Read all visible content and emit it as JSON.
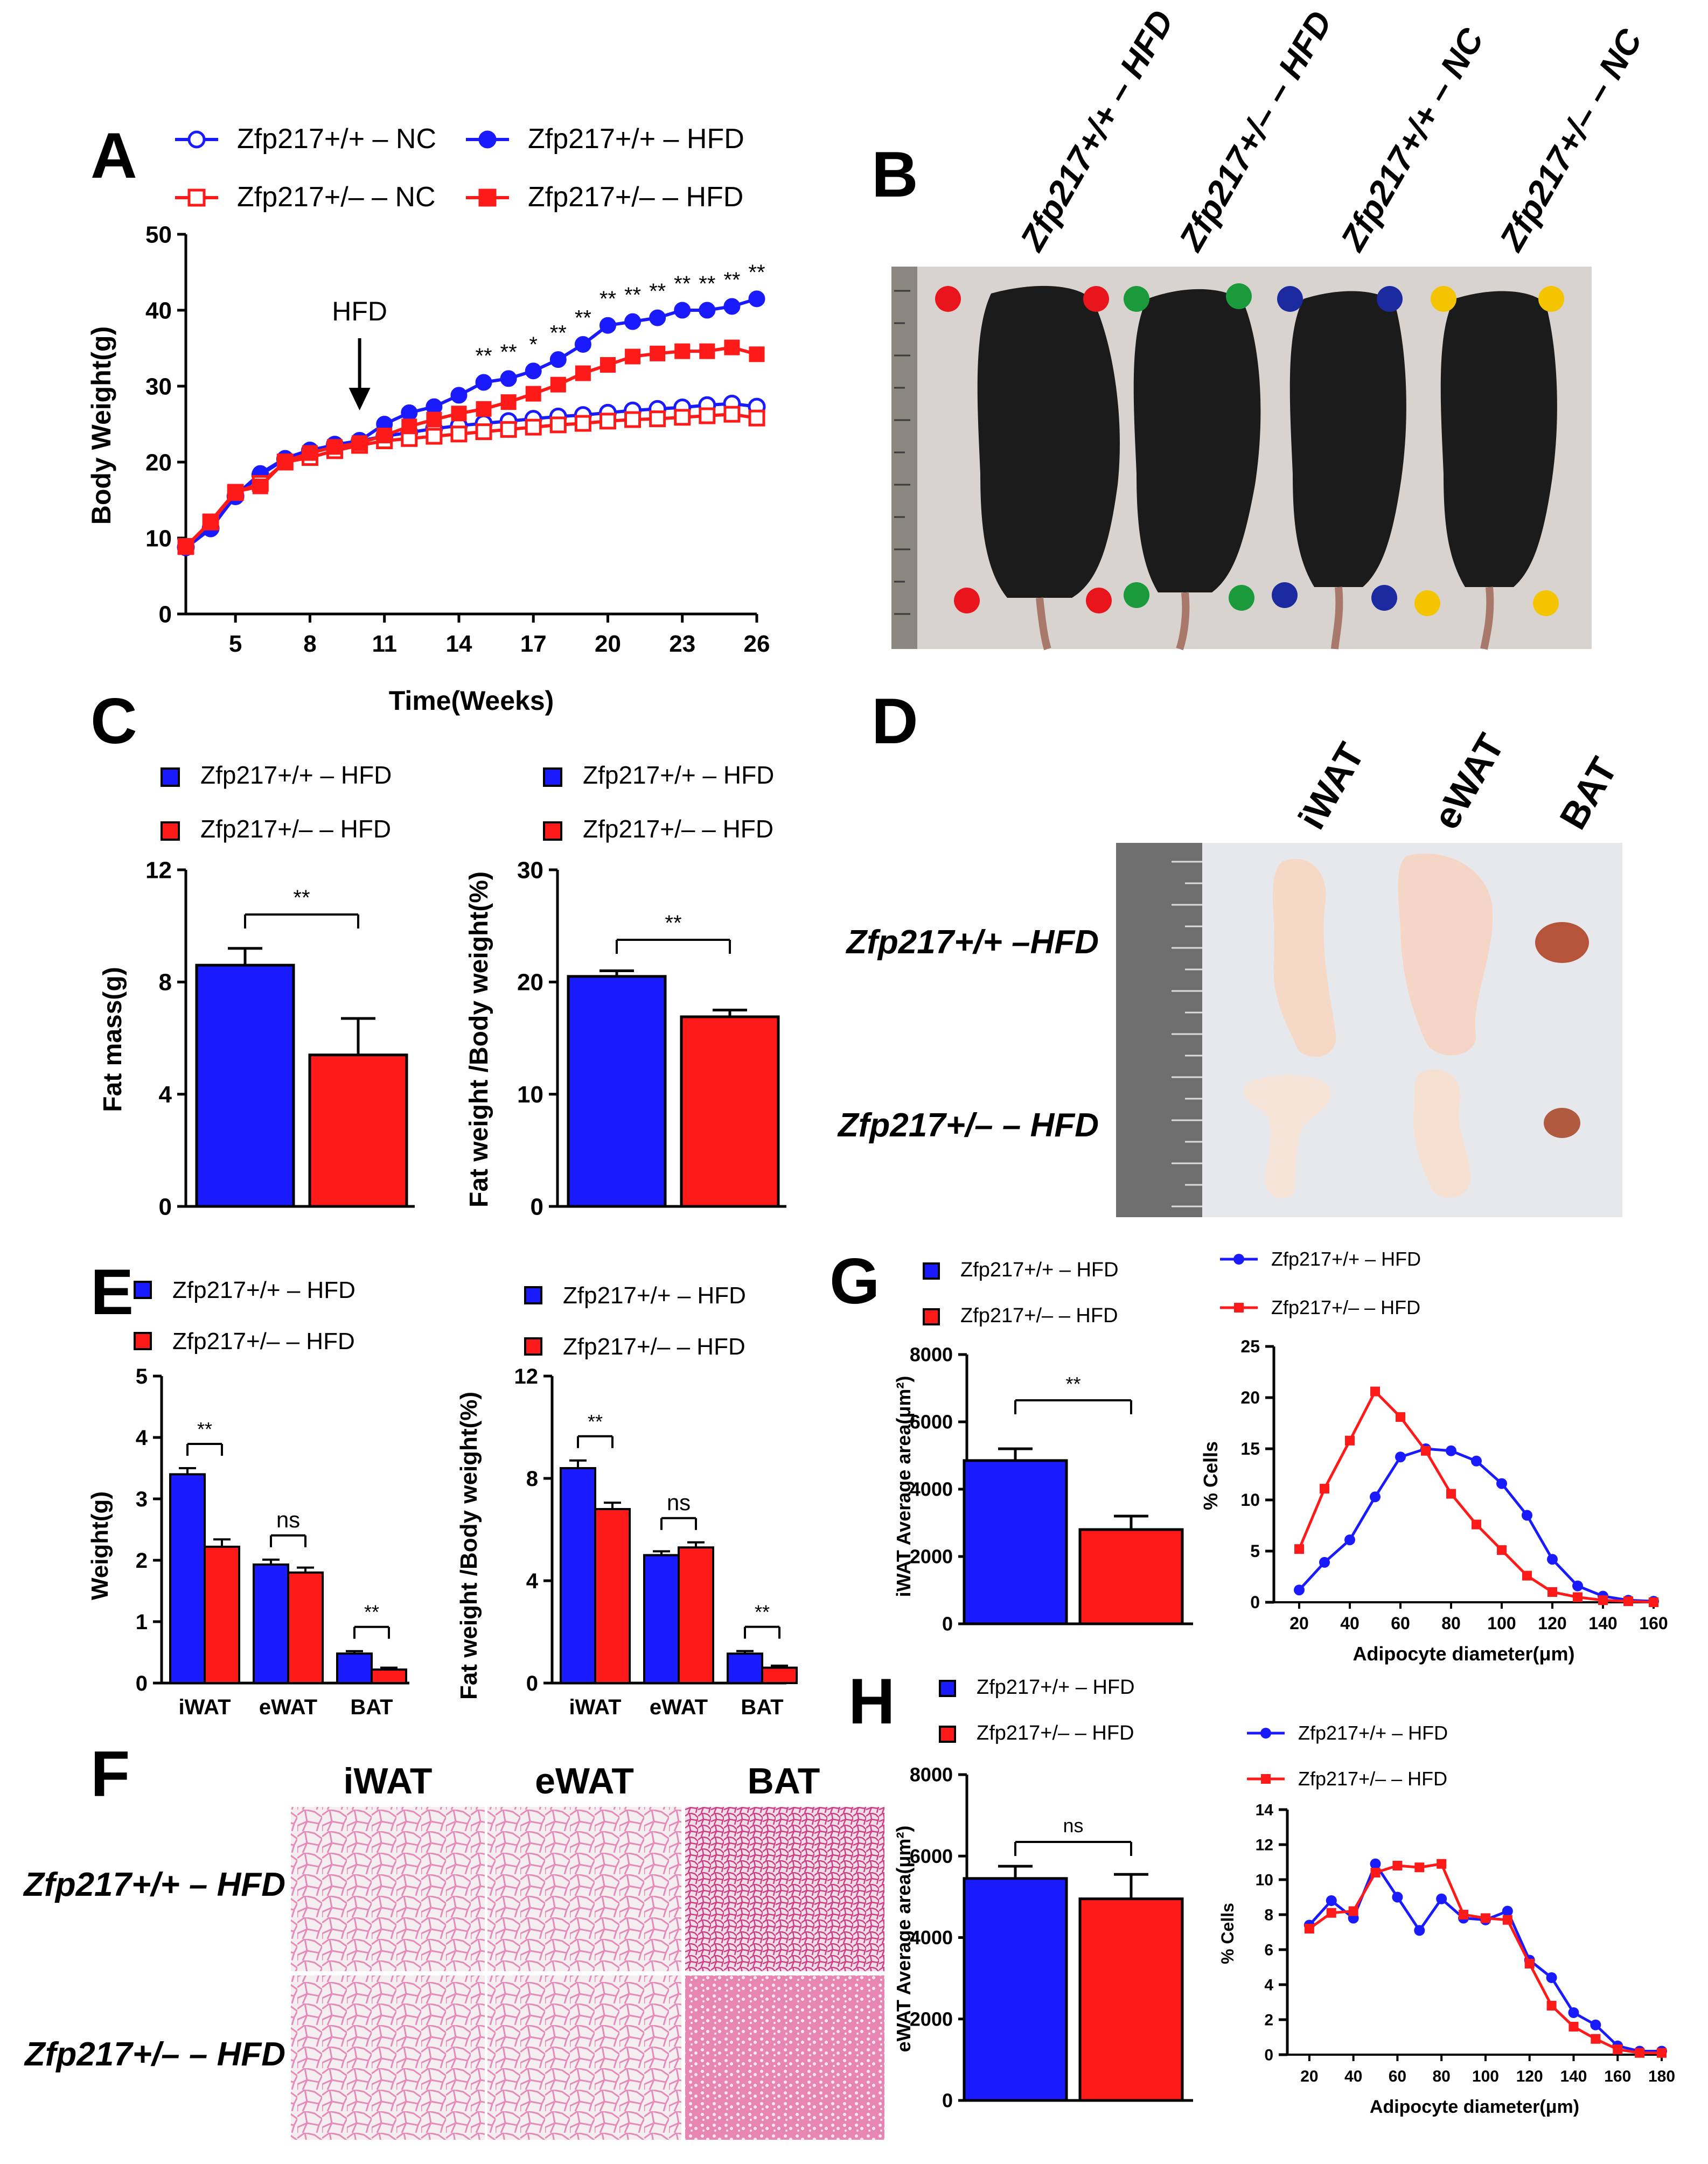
{
  "figure": {
    "panel_letters": [
      "A",
      "B",
      "C",
      "D",
      "E",
      "F",
      "G",
      "H"
    ],
    "group_legend": {
      "wt_hfd": "Zfp217+/+ – HFD",
      "het_hfd": "Zfp217+/– – HFD",
      "wt_nc": "Zfp217+/+ – NC",
      "het_nc": "Zfp217+/– – NC"
    },
    "colors": {
      "blue": "#1a1aff",
      "red": "#ff1a1a",
      "ruler": "#6f6f6f"
    }
  },
  "panel_b": {
    "column_labels": [
      "Zfp217+/+ – HFD",
      "Zfp217+/– – HFD",
      "Zfp217+/+ – NC",
      "Zfp217+/– – NC"
    ],
    "tag_colors": [
      "#e8151c",
      "#1a9a3a",
      "#1c2aa0",
      "#f5c400"
    ]
  },
  "panel_d": {
    "column_labels": [
      "iWAT",
      "eWAT",
      "BAT"
    ],
    "row_labels": [
      "Zfp217+/+ –HFD",
      "Zfp217+/– – HFD"
    ]
  },
  "panel_f": {
    "column_labels": [
      "iWAT",
      "eWAT",
      "BAT"
    ],
    "row_labels": [
      "Zfp217+/+ – HFD",
      "Zfp217+/– – HFD"
    ]
  },
  "chart_data": [
    {
      "id": "A",
      "type": "line",
      "xlabel": "Time(Weeks)",
      "ylabel": "Body Weight(g)",
      "xlim": [
        3,
        26
      ],
      "ylim": [
        0,
        50
      ],
      "xticks": [
        5,
        8,
        11,
        14,
        17,
        20,
        23,
        26
      ],
      "yticks": [
        0,
        10,
        20,
        30,
        40,
        50
      ],
      "annotation": {
        "text": "HFD",
        "x": 10
      },
      "x": [
        3,
        4,
        5,
        6,
        7,
        8,
        9,
        10,
        11,
        12,
        13,
        14,
        15,
        16,
        17,
        18,
        19,
        20,
        21,
        22,
        23,
        24,
        25,
        26
      ],
      "series": [
        {
          "name": "Zfp217+/+ – NC",
          "color": "#1a1aff",
          "marker": "open-circle",
          "values": [
            8.8,
            11.3,
            15.5,
            18.3,
            20.4,
            21.5,
            22.3,
            22.8,
            23.4,
            23.9,
            24.4,
            24.8,
            25.1,
            25.4,
            25.7,
            26.0,
            26.2,
            26.5,
            26.8,
            27.0,
            27.2,
            27.5,
            27.7,
            27.3
          ]
        },
        {
          "name": "Zfp217+/+ – HFD",
          "color": "#1a1aff",
          "marker": "filled-circle",
          "values": [
            8.7,
            11.2,
            15.6,
            18.5,
            20.5,
            21.6,
            22.2,
            22.8,
            25.0,
            26.5,
            27.3,
            28.8,
            30.5,
            31.0,
            32.0,
            33.5,
            35.5,
            38.0,
            38.5,
            39.0,
            40.0,
            40.0,
            40.5,
            41.5
          ]
        },
        {
          "name": "Zfp217+/– – NC",
          "color": "#ff1a1a",
          "marker": "open-square",
          "values": [
            8.9,
            12.1,
            16.0,
            17.2,
            20.0,
            20.6,
            21.5,
            22.2,
            22.8,
            23.1,
            23.4,
            23.7,
            24.0,
            24.3,
            24.6,
            24.9,
            25.1,
            25.4,
            25.6,
            25.7,
            25.9,
            26.1,
            26.3,
            25.8
          ]
        },
        {
          "name": "Zfp217+/– – HFD",
          "color": "#ff1a1a",
          "marker": "filled-square",
          "values": [
            8.8,
            12.2,
            16.1,
            16.8,
            20.1,
            21.2,
            22.0,
            22.5,
            23.5,
            24.7,
            25.6,
            26.4,
            27.0,
            27.9,
            29.0,
            30.2,
            31.7,
            32.8,
            33.9,
            34.3,
            34.6,
            34.6,
            35.1,
            34.2
          ]
        }
      ],
      "significance": [
        {
          "x": 15,
          "label": "**"
        },
        {
          "x": 16,
          "label": "**"
        },
        {
          "x": 17,
          "label": "*"
        },
        {
          "x": 18,
          "label": "**"
        },
        {
          "x": 19,
          "label": "**"
        },
        {
          "x": 20,
          "label": "**"
        },
        {
          "x": 21,
          "label": "**"
        },
        {
          "x": 22,
          "label": "**"
        },
        {
          "x": 23,
          "label": "**"
        },
        {
          "x": 24,
          "label": "**"
        },
        {
          "x": 25,
          "label": "**"
        },
        {
          "x": 26,
          "label": "**"
        }
      ]
    },
    {
      "id": "C1",
      "type": "bar",
      "ylabel": "Fat mass(g)",
      "ylim": [
        0,
        12
      ],
      "yticks": [
        0,
        4,
        8,
        12
      ],
      "categories": [
        "Zfp217+/+ – HFD",
        "Zfp217+/– – HFD"
      ],
      "values": [
        8.6,
        5.4
      ],
      "errors": [
        0.6,
        1.3
      ],
      "colors": [
        "#1a1aff",
        "#ff1a1a"
      ],
      "significance": "**"
    },
    {
      "id": "C2",
      "type": "bar",
      "ylabel": "Fat weight /Body weight(%)",
      "ylim": [
        0,
        30
      ],
      "yticks": [
        0,
        10,
        20,
        30
      ],
      "categories": [
        "Zfp217+/+ – HFD",
        "Zfp217+/– – HFD"
      ],
      "values": [
        20.5,
        16.9
      ],
      "errors": [
        0.5,
        0.6
      ],
      "colors": [
        "#1a1aff",
        "#ff1a1a"
      ],
      "significance": "**"
    },
    {
      "id": "E1",
      "type": "bar",
      "ylabel": "Weight(g)",
      "ylim": [
        0,
        5
      ],
      "yticks": [
        0,
        1,
        2,
        3,
        4,
        5
      ],
      "categories": [
        "iWAT",
        "eWAT",
        "BAT"
      ],
      "series": [
        {
          "name": "Zfp217+/+ – HFD",
          "values": [
            3.4,
            1.93,
            0.48
          ],
          "errors": [
            0.1,
            0.08,
            0.04
          ]
        },
        {
          "name": "Zfp217+/– – HFD",
          "values": [
            2.22,
            1.8,
            0.22
          ],
          "errors": [
            0.12,
            0.08,
            0.03
          ]
        }
      ],
      "significance": [
        "**",
        "ns",
        "**"
      ]
    },
    {
      "id": "E2",
      "type": "bar",
      "ylabel": "Fat weight /Body weight(%)",
      "ylim": [
        0,
        12
      ],
      "yticks": [
        0,
        4,
        8,
        12
      ],
      "categories": [
        "iWAT",
        "eWAT",
        "BAT"
      ],
      "series": [
        {
          "name": "Zfp217+/+ – HFD",
          "values": [
            8.4,
            5.0,
            1.15
          ],
          "errors": [
            0.3,
            0.15,
            0.1
          ]
        },
        {
          "name": "Zfp217+/– – HFD",
          "values": [
            6.8,
            5.3,
            0.6
          ],
          "errors": [
            0.25,
            0.2,
            0.08
          ]
        }
      ],
      "significance": [
        "**",
        "ns",
        "**"
      ]
    },
    {
      "id": "G1",
      "type": "bar",
      "ylabel": "iWAT Average area(μm²)",
      "ylim": [
        0,
        8000
      ],
      "yticks": [
        0,
        2000,
        4000,
        6000,
        8000
      ],
      "categories": [
        "Zfp217+/+ – HFD",
        "Zfp217+/– – HFD"
      ],
      "values": [
        4850,
        2800
      ],
      "errors": [
        350,
        400
      ],
      "colors": [
        "#1a1aff",
        "#ff1a1a"
      ],
      "significance": "**"
    },
    {
      "id": "G2",
      "type": "line",
      "xlabel": "Adipocyte diameter(μm)",
      "ylabel": "% Cells",
      "xlim": [
        10,
        160
      ],
      "ylim": [
        0,
        25
      ],
      "xticks": [
        20,
        40,
        60,
        80,
        100,
        120,
        140,
        160
      ],
      "yticks": [
        0,
        5,
        10,
        15,
        20,
        25
      ],
      "x": [
        20,
        30,
        40,
        50,
        60,
        70,
        80,
        90,
        100,
        110,
        120,
        130,
        140,
        150,
        160
      ],
      "series": [
        {
          "name": "Zfp217+/+ – HFD",
          "color": "#1a1aff",
          "marker": "circle",
          "values": [
            1.2,
            3.9,
            6.1,
            10.3,
            14.2,
            15.0,
            14.8,
            13.8,
            11.6,
            8.5,
            4.2,
            1.6,
            0.6,
            0.2,
            0.1
          ]
        },
        {
          "name": "Zfp217+/– – HFD",
          "color": "#ff1a1a",
          "marker": "square",
          "values": [
            5.2,
            11.1,
            15.8,
            20.6,
            18.1,
            14.8,
            10.6,
            7.6,
            5.1,
            2.6,
            1.0,
            0.5,
            0.2,
            0.1,
            0.0
          ]
        }
      ]
    },
    {
      "id": "H1",
      "type": "bar",
      "ylabel": "eWAT Average area(μm²)",
      "ylim": [
        0,
        8000
      ],
      "yticks": [
        0,
        2000,
        4000,
        6000,
        8000
      ],
      "categories": [
        "Zfp217+/+ – HFD",
        "Zfp217+/– – HFD"
      ],
      "values": [
        5450,
        4950
      ],
      "errors": [
        300,
        600
      ],
      "colors": [
        "#1a1aff",
        "#ff1a1a"
      ],
      "significance": "ns"
    },
    {
      "id": "H2",
      "type": "line",
      "xlabel": "Adipocyte diameter(μm)",
      "ylabel": "% Cells",
      "xlim": [
        10,
        180
      ],
      "ylim": [
        0,
        14
      ],
      "xticks": [
        20,
        40,
        60,
        80,
        100,
        120,
        140,
        160,
        180
      ],
      "yticks": [
        0,
        2,
        4,
        6,
        8,
        10,
        12,
        14
      ],
      "x": [
        20,
        30,
        40,
        50,
        60,
        70,
        80,
        90,
        100,
        110,
        120,
        130,
        140,
        150,
        160,
        170,
        180
      ],
      "series": [
        {
          "name": "Zfp217+/+ – HFD",
          "color": "#1a1aff",
          "marker": "circle",
          "values": [
            7.4,
            8.8,
            7.8,
            10.9,
            9.0,
            7.1,
            8.9,
            7.8,
            7.7,
            8.2,
            5.4,
            4.4,
            2.4,
            1.7,
            0.5,
            0.2,
            0.2
          ]
        },
        {
          "name": "Zfp217+/– – HFD",
          "color": "#ff1a1a",
          "marker": "square",
          "values": [
            7.2,
            8.1,
            8.2,
            10.4,
            10.8,
            10.7,
            10.9,
            8.0,
            7.8,
            7.7,
            5.2,
            2.8,
            1.6,
            0.9,
            0.3,
            0.1,
            0.1
          ]
        }
      ]
    }
  ]
}
